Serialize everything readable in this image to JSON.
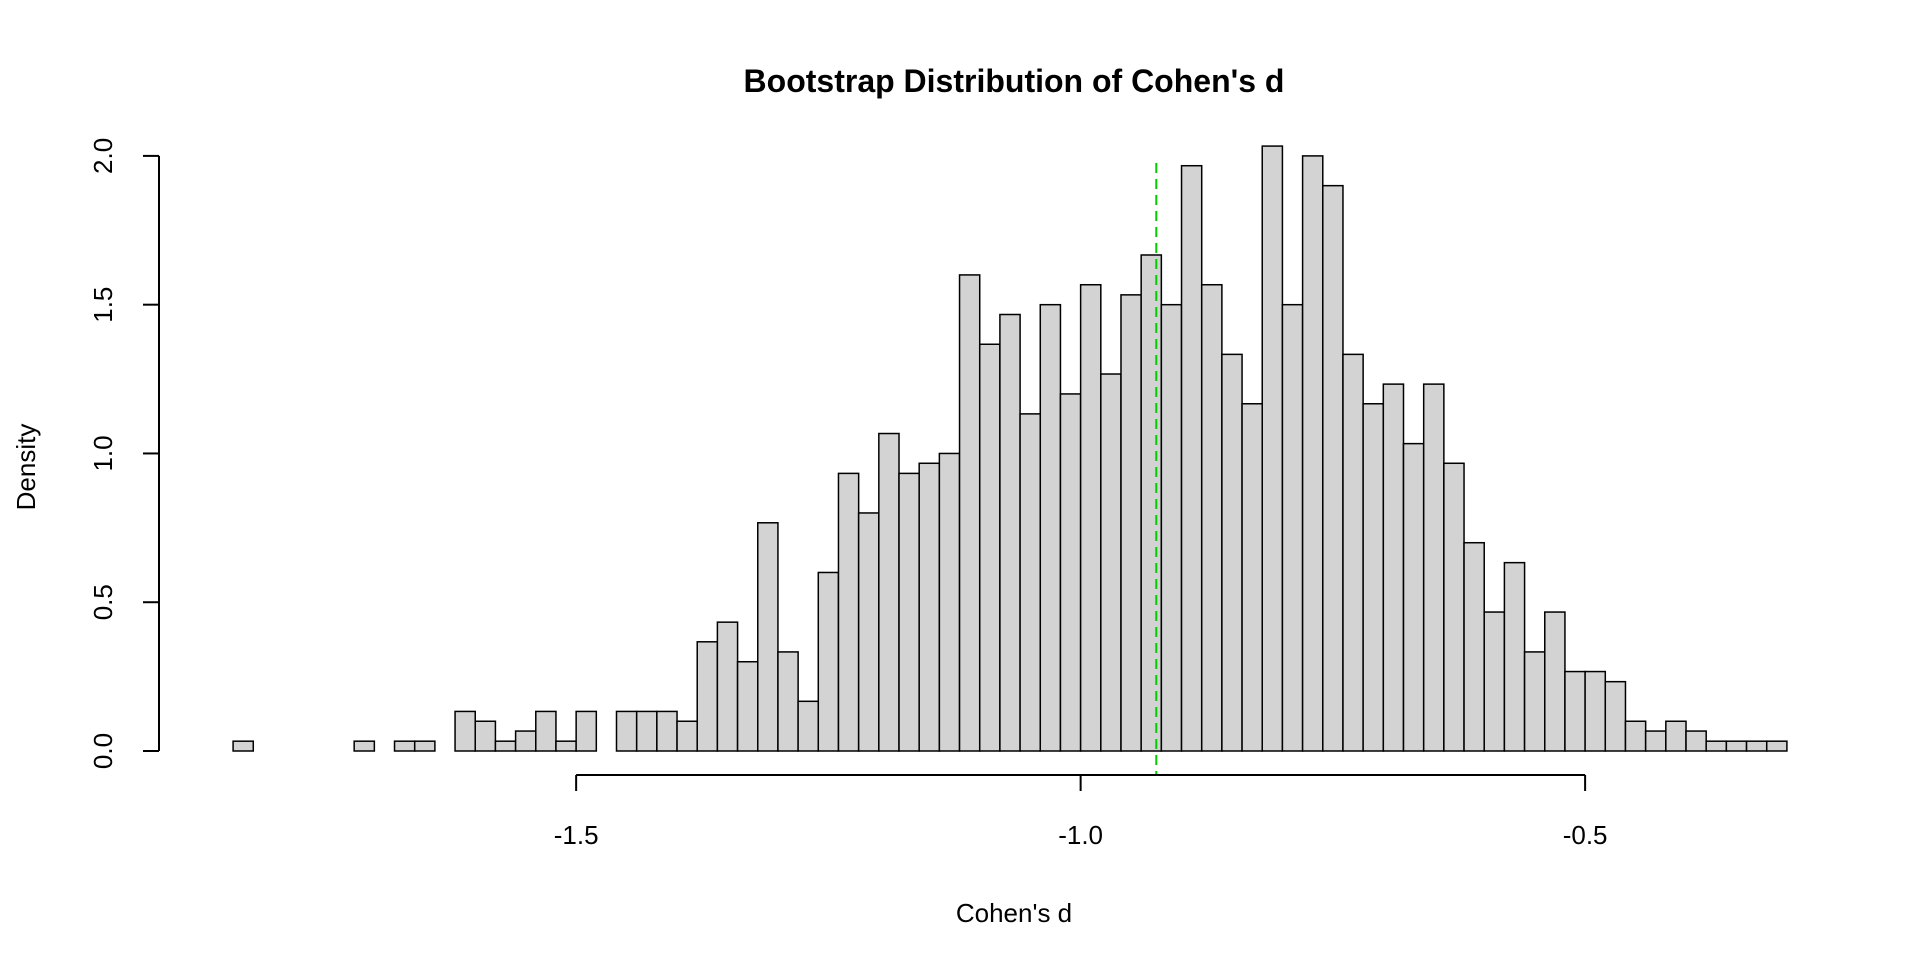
{
  "chart_data": {
    "type": "bar",
    "subtype": "histogram",
    "title": "Bootstrap Distribution of Cohen's d",
    "xlabel": "Cohen's d",
    "ylabel": "Density",
    "bin_width": 0.02,
    "bins_start": -1.84,
    "xlim": [
      -1.85,
      -0.29
    ],
    "ylim": [
      0,
      2.04
    ],
    "x_ticks": [
      -1.5,
      -1.0,
      -0.5
    ],
    "x_tick_labels": [
      "-1.5",
      "-1.0",
      "-0.5"
    ],
    "y_ticks": [
      0,
      0.5,
      1.0,
      1.5,
      2.0
    ],
    "y_tick_labels": [
      "0.0",
      "0.5",
      "1.0",
      "1.5",
      "2.0"
    ],
    "densities": [
      0.033,
      0,
      0,
      0,
      0,
      0,
      0.033,
      0,
      0.033,
      0.033,
      0,
      0.133,
      0.1,
      0.033,
      0.067,
      0.133,
      0.033,
      0.133,
      0,
      0.133,
      0.133,
      0.133,
      0.1,
      0.367,
      0.433,
      0.3,
      0.767,
      0.333,
      0.167,
      0.6,
      0.933,
      0.8,
      1.067,
      0.933,
      0.967,
      1.0,
      1.6,
      1.367,
      1.467,
      1.133,
      1.5,
      1.2,
      1.567,
      1.267,
      1.533,
      1.667,
      1.5,
      1.967,
      1.567,
      1.333,
      1.167,
      2.033,
      1.5,
      2.0,
      1.9,
      1.333,
      1.167,
      1.233,
      1.033,
      1.233,
      0.967,
      0.7,
      0.467,
      0.633,
      0.333,
      0.467,
      0.267,
      0.267,
      0.233,
      0.1,
      0.067,
      0.1,
      0.067,
      0.033,
      0.033,
      0.033,
      0.033
    ],
    "reference_line": {
      "x": -0.925,
      "style": "dashed"
    },
    "colors": {
      "bar_fill": "#d3d3d3",
      "bar_stroke": "#000000",
      "reference_line": "#00cc00"
    },
    "grid": false,
    "legend": "none"
  }
}
